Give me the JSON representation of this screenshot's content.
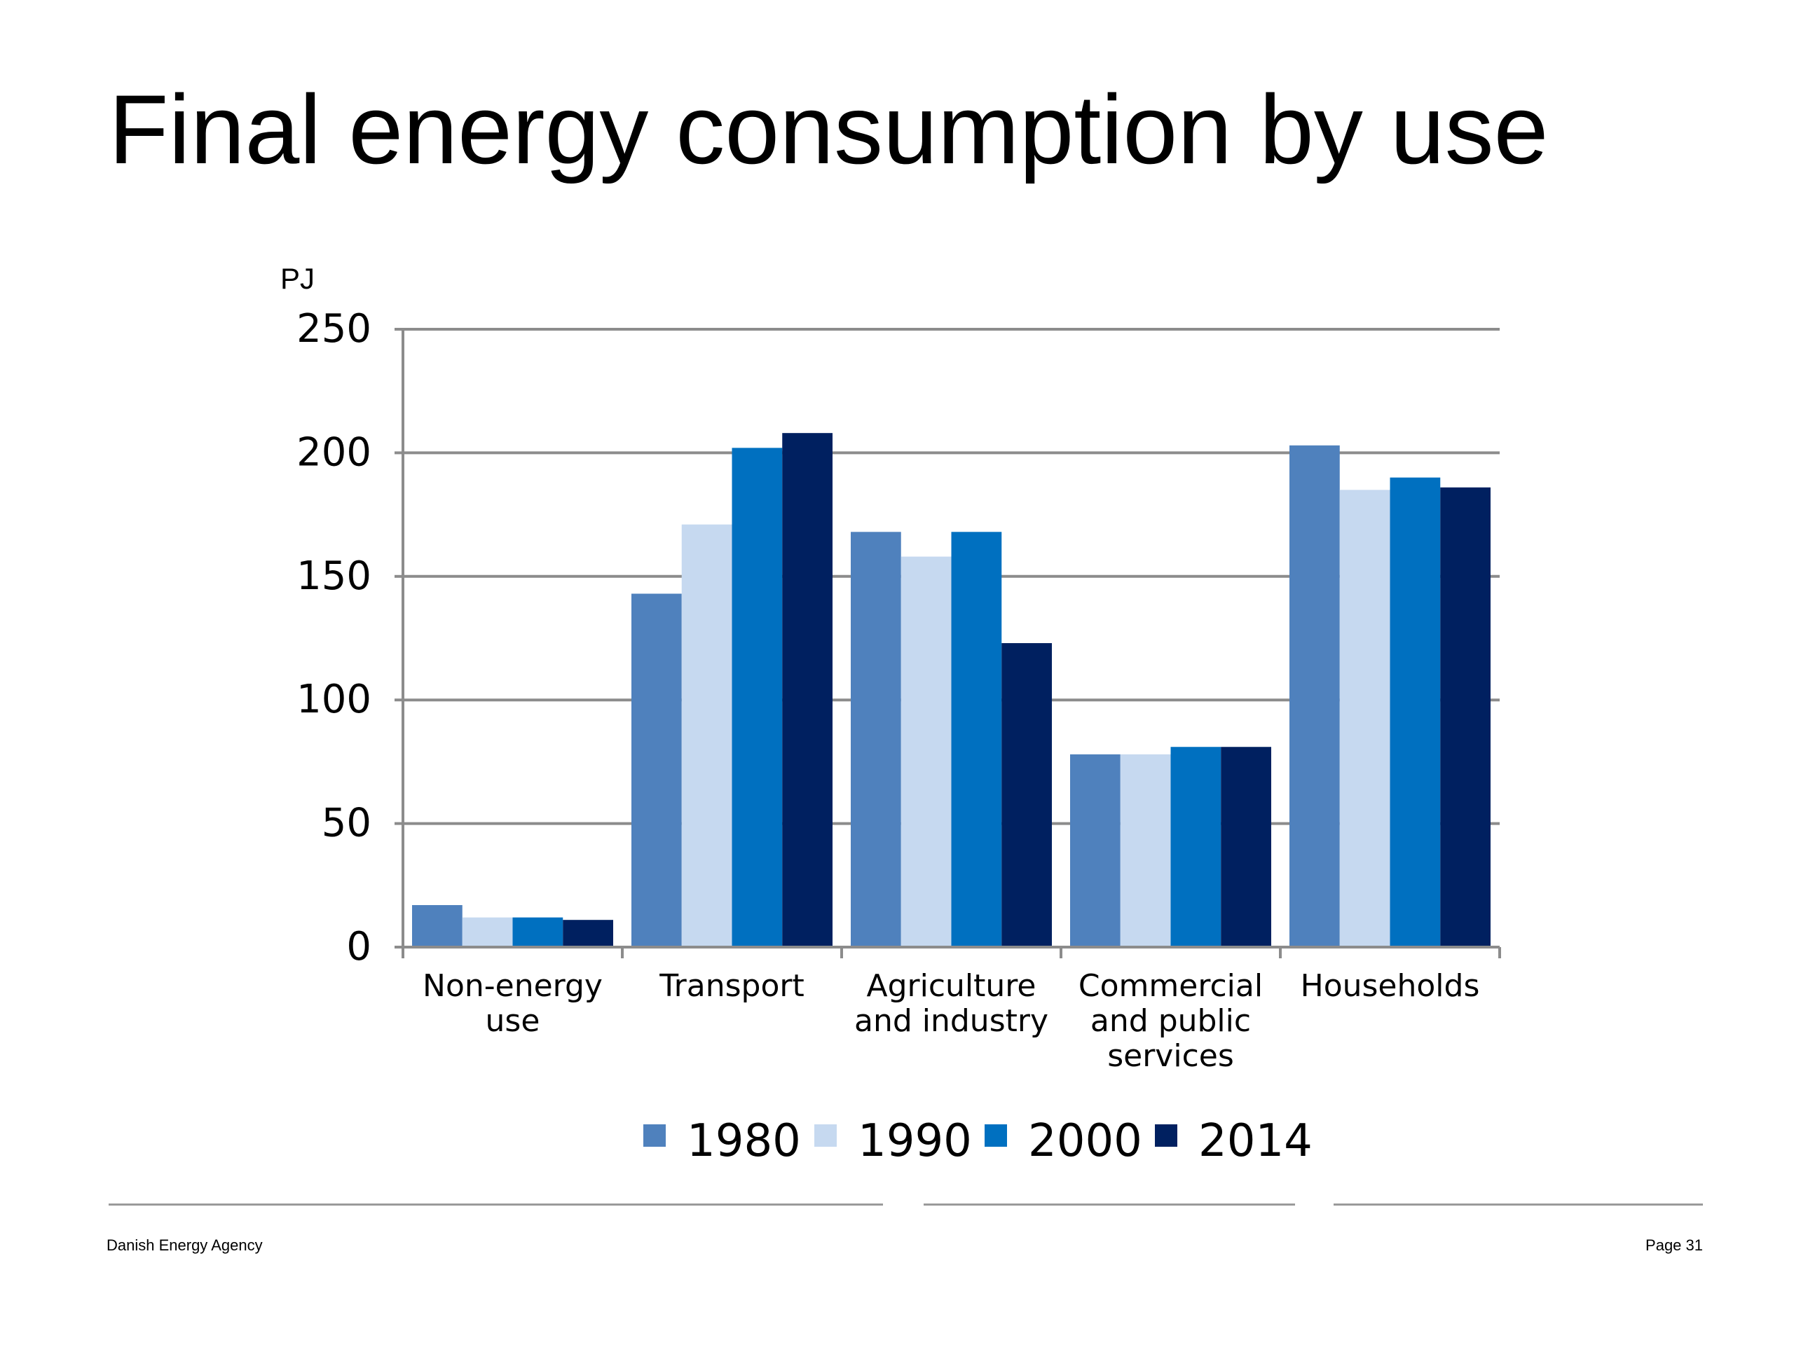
{
  "slide": {
    "title": "Final energy consumption by use"
  },
  "footer": {
    "organization": "Danish Energy Agency",
    "page": "Page 31"
  },
  "colors": {
    "1980": "#4f81bd",
    "1990": "#c6d9f0",
    "2000": "#0070c0",
    "2014": "#002060",
    "grid": "#8c8c8c",
    "footer_rule": "#9a9a9a"
  },
  "chart_data": {
    "type": "bar",
    "title": "",
    "ylabel": "PJ",
    "xlabel": "",
    "ylim": [
      0,
      250
    ],
    "yticks": [
      0,
      50,
      100,
      150,
      200,
      250
    ],
    "grid": true,
    "legend_position": "bottom",
    "categories": [
      [
        "Non-energy",
        "use"
      ],
      [
        "Transport"
      ],
      [
        "Agriculture",
        "and industry"
      ],
      [
        "Commercial",
        "and public",
        "services"
      ],
      [
        "Households"
      ]
    ],
    "series": [
      {
        "name": "1980",
        "color": "#4f81bd",
        "values": [
          17,
          143,
          168,
          78,
          203
        ]
      },
      {
        "name": "1990",
        "color": "#c6d9f0",
        "values": [
          12,
          171,
          158,
          78,
          185
        ]
      },
      {
        "name": "2000",
        "color": "#0070c0",
        "values": [
          12,
          202,
          168,
          81,
          190
        ]
      },
      {
        "name": "2014",
        "color": "#002060",
        "values": [
          11,
          208,
          123,
          81,
          186
        ]
      }
    ]
  }
}
